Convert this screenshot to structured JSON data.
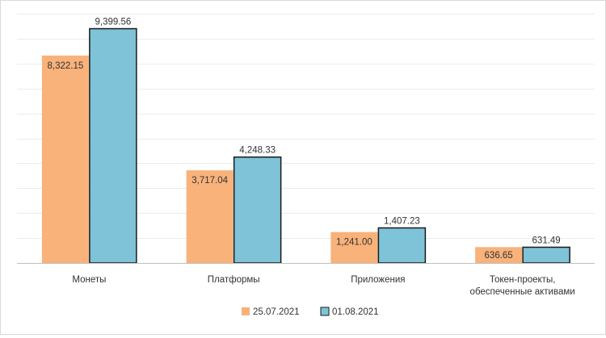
{
  "chart_data": {
    "type": "bar",
    "categories": [
      [
        "Монеты"
      ],
      [
        "Платформы"
      ],
      [
        "Приложения"
      ],
      [
        "Токен-проекты,",
        "обеспеченные активами"
      ]
    ],
    "series": [
      {
        "name": "25.07.2021",
        "color": "#F8B27A",
        "values": [
          8322.15,
          3717.04,
          1241.0,
          636.65
        ],
        "labels": [
          "8,322.15",
          "3,717.04",
          "1,241.00",
          "636.65"
        ]
      },
      {
        "name": "01.08.2021",
        "color": "#7EC3D8",
        "values": [
          9399.56,
          4248.33,
          1407.23,
          631.49
        ],
        "labels": [
          "9,399.56",
          "4,248.33",
          "1,407.23",
          "631.49"
        ]
      }
    ],
    "ylim": [
      0,
      10000
    ],
    "gridlines": 10,
    "grid": true,
    "legend": "bottom-center"
  }
}
